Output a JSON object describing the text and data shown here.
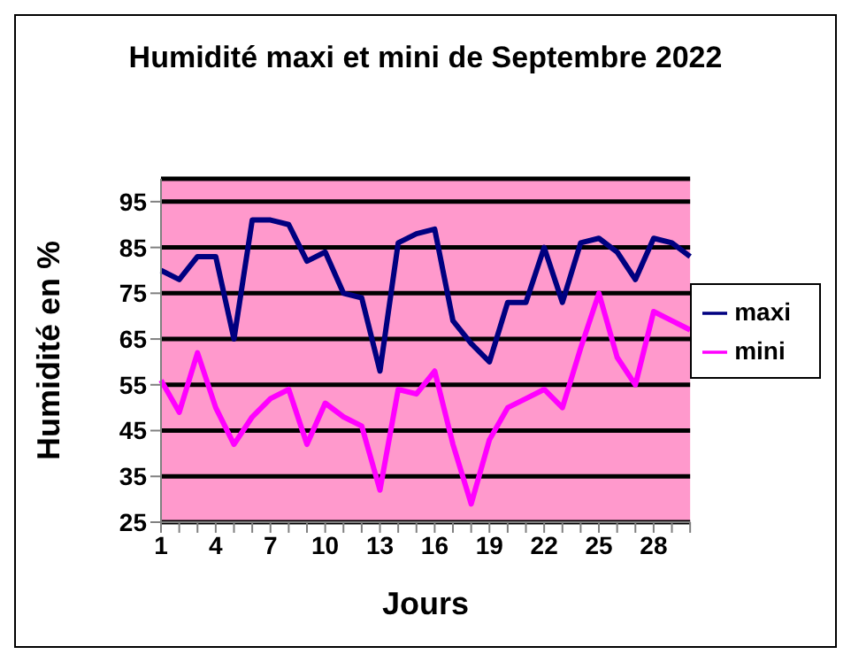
{
  "chart_data": {
    "type": "line",
    "title": "Humidité maxi et mini de Septembre 2022",
    "xlabel": "Jours",
    "ylabel": "Humidité en %",
    "categories": [
      "1",
      null,
      null,
      "4",
      null,
      null,
      "7",
      null,
      null,
      "10",
      null,
      null,
      "13",
      null,
      null,
      "16",
      null,
      null,
      "19",
      null,
      null,
      "22",
      null,
      null,
      "25",
      null,
      null,
      "28",
      null,
      null
    ],
    "series": [
      {
        "name": "maxi",
        "color": "#000080",
        "values": [
          80,
          78,
          83,
          83,
          65,
          91,
          91,
          90,
          82,
          84,
          75,
          74,
          58,
          86,
          88,
          89,
          69,
          64,
          60,
          73,
          73,
          85,
          73,
          86,
          87,
          84,
          78,
          87,
          86,
          83
        ]
      },
      {
        "name": "mini",
        "color": "#ff00ff",
        "values": [
          56,
          49,
          62,
          50,
          42,
          48,
          52,
          54,
          42,
          51,
          48,
          46,
          32,
          54,
          53,
          58,
          42,
          29,
          43,
          50,
          52,
          54,
          50,
          63,
          75,
          61,
          55,
          71,
          69,
          67
        ]
      }
    ],
    "ylim": [
      25,
      100
    ],
    "yticks": [
      25,
      35,
      45,
      55,
      65,
      75,
      85,
      95
    ],
    "grid": "y",
    "legend": "right",
    "marker": "none",
    "line_style": "solid"
  }
}
